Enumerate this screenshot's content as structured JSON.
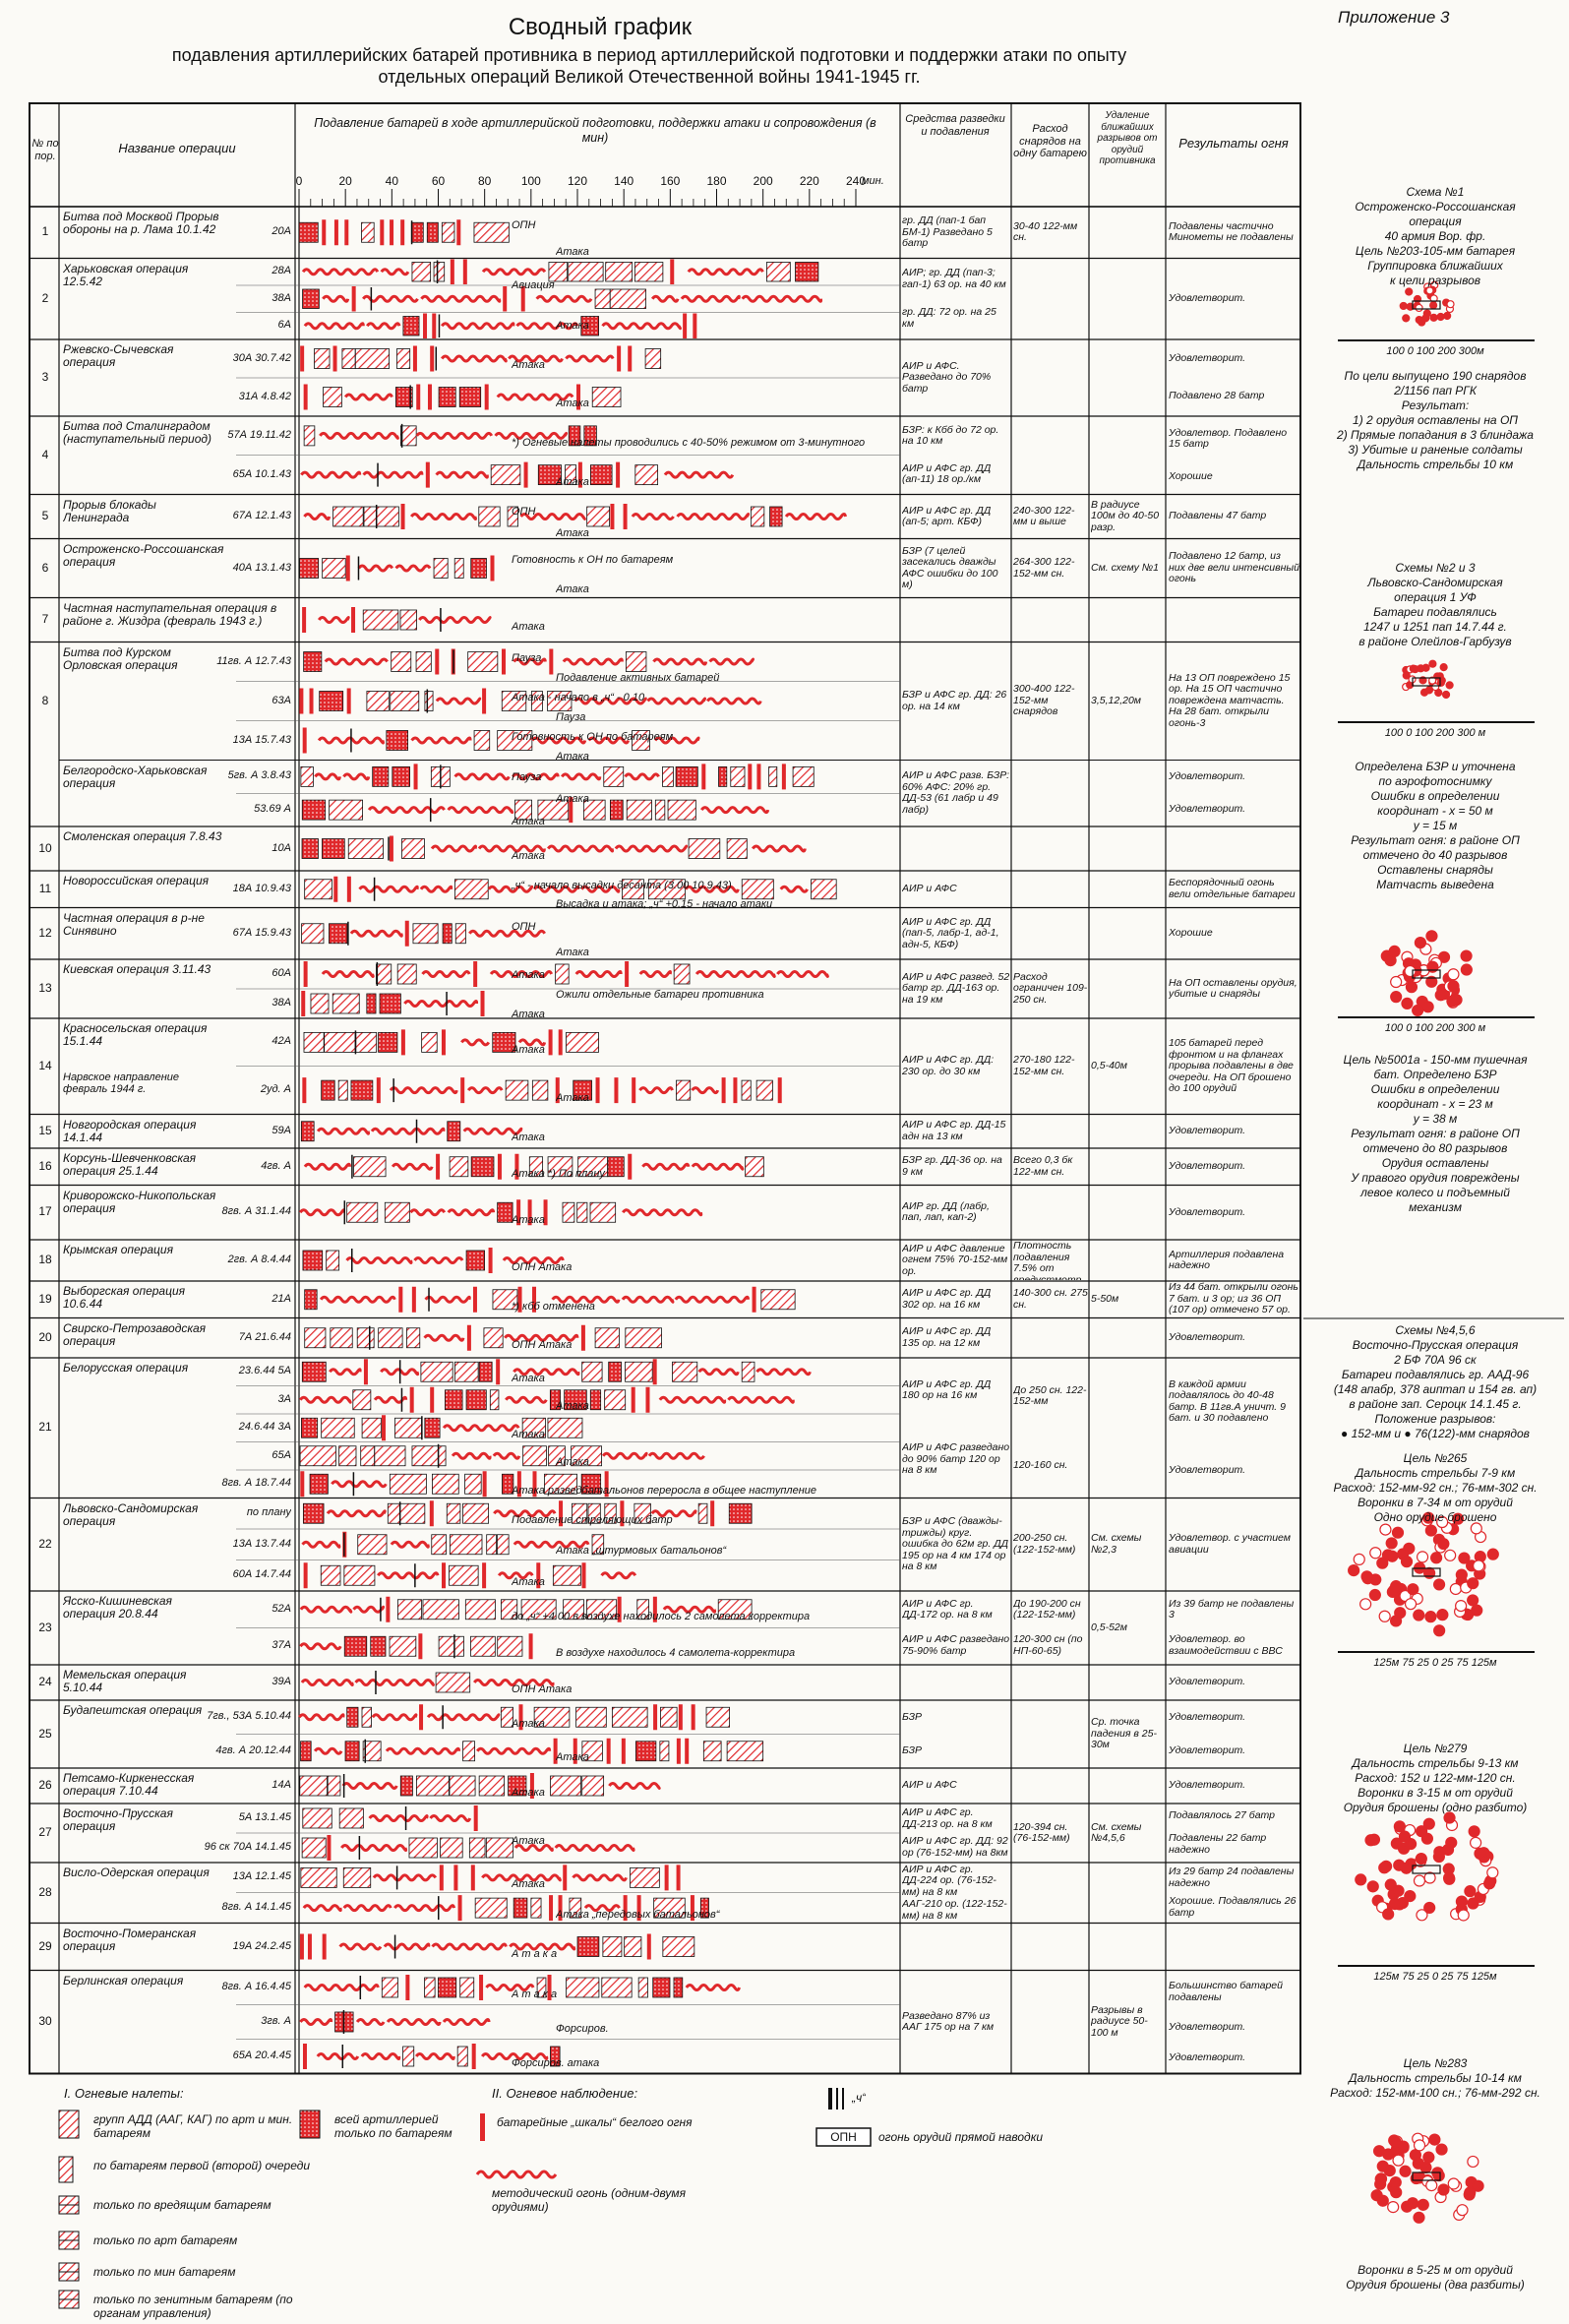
{
  "appendix": "Приложение 3",
  "title": "Сводный график",
  "subtitle": [
    "подавления артиллерийских батарей противника в период артиллерийской подготовки и поддержки атаки по опыту",
    "отдельных операций Великой Отечественной войны 1941-1945 гг."
  ],
  "header": {
    "num": "№ по пор.",
    "name": "Название операции",
    "chart": "Подавление батарей в ходе артиллерийской подготовки, поддержки атаки и сопровождения (в мин)",
    "means": "Средства разведки и подавления",
    "exp": "Расход снарядов на одну батарею",
    "dist": "Удаление ближайших разрывов от орудий противника",
    "result": "Результаты огня",
    "ticks": [
      0,
      20,
      40,
      60,
      80,
      100,
      120,
      140,
      160,
      180,
      200,
      220,
      240
    ],
    "unit": "мин."
  },
  "rows": [
    {
      "num": 1,
      "name": "Битва под Москвой Прорыв обороны на р. Лама 10.1.42",
      "units": [
        "20А"
      ],
      "means": [
        "гр. ДД (пап-1 бап БМ-1) Разведано 5 батр"
      ],
      "exp": [
        "30-40 122-мм сн."
      ],
      "res": [
        "Подавлены частично Минометы не подавлены"
      ],
      "notes": [
        "ОПН",
        "Атака"
      ]
    },
    {
      "num": 2,
      "name": "Харьковская операция 12.5.42",
      "units": [
        "28А",
        "38А",
        "6А"
      ],
      "means": [
        "АИР; гр. ДД (пап-3; гап-1) 63 ор. на 40 км",
        "гр. ДД: 72 ор. на 25 км"
      ],
      "res": [
        "Удовлетворит."
      ],
      "notes": [
        "Авиация",
        "Атака"
      ]
    },
    {
      "num": 3,
      "name": "Ржевско-Сычевская операция",
      "units": [
        "30А 30.7.42",
        "31А 4.8.42"
      ],
      "means": [
        "АИР и АФС. Разведано до 70% батр"
      ],
      "res": [
        "Удовлетворит.",
        "Подавлено 28 батр"
      ],
      "notes": [
        "Атака",
        "Атака"
      ]
    },
    {
      "num": 4,
      "name": "Битва под Сталинградом (наступательный период)",
      "units": [
        "57А 19.11.42",
        "65А 10.1.43"
      ],
      "means": [
        "БЗР: к Кбб до 72 ор. на 10 км",
        "АИР и АФС гр. ДД (ап-11) 18 ор./км"
      ],
      "res": [
        "Удовлетвор. Подавлено 15 батр",
        "Хорошие"
      ],
      "notes": [
        "*) Огневые налеты проводились с 40-50% режимом от 3-минутного",
        "Атака"
      ]
    },
    {
      "num": 5,
      "name": "Прорыв блокады Ленинграда",
      "units": [
        "67А 12.1.43"
      ],
      "means": [
        "АИР и АФС гр. ДД (ап-5; арт. КБФ)"
      ],
      "exp": [
        "240-300 122-мм и выше"
      ],
      "dist": [
        "В радиусе 100м до 40-50 разр."
      ],
      "res": [
        "Подавлены 47 батр"
      ],
      "notes": [
        "ОПН",
        "Атака"
      ]
    },
    {
      "num": 6,
      "name": "Остроженско-Россошанская операция",
      "units": [
        "40А 13.1.43"
      ],
      "means": [
        "БЗР (7 целей засекались дважды АФС ошибки до 100 м)"
      ],
      "exp": [
        "264-300 122-152-мм сн."
      ],
      "dist": [
        "См. схему №1"
      ],
      "res": [
        "Подавлено 12 батр, из них две вели интенсивный огонь"
      ],
      "notes": [
        "Готовность к ОН по батареям",
        "Атака"
      ]
    },
    {
      "num": 7,
      "name": "Частная наступательная операция в районе г. Жиздра (февраль 1943 г.)",
      "units": [],
      "notes": [
        "Атака"
      ]
    },
    {
      "num": 8,
      "name": "Битва под Курском Орловская операция",
      "units": [
        "11гв. А 12.7.43",
        "63А",
        "13А 15.7.43"
      ],
      "means": [
        "БЗР и АФС гр. ДД: 26 ор. на 14 км"
      ],
      "exp": [
        "300-400 122-152-мм снарядов"
      ],
      "dist": [
        "3,5,12,20м"
      ],
      "res": [
        "На 13 ОП повреждено 15 ор. На 15 ОП частично повреждена матчасть. На 28 бат. открыли огонь-3"
      ],
      "notes": [
        "Пауза",
        "Подавление активных батарей",
        "Атака - начало в „ч“ - 0.10",
        "Пауза",
        "Готовность к ОН по батареям",
        "Атака"
      ]
    },
    {
      "name": "Белгородско-Харьковская операция",
      "units": [
        "5гв. А 3.8.43",
        "53.69 А"
      ],
      "means": [
        "АИР и АФС разв. БЗР: 60% АФС: 20% гр. ДД-53 (61 лабр и 49 лабр)"
      ],
      "res": [
        "Удовлетворит.",
        "Удовлетворит."
      ],
      "notes": [
        "Пауза",
        "Атака",
        "Атака"
      ]
    },
    {
      "num": 10,
      "name": "Смоленская операция 7.8.43",
      "units": [
        "10А"
      ],
      "notes": [
        "Атака"
      ]
    },
    {
      "num": 11,
      "name": "Новороссийская операция",
      "units": [
        "18А 10.9.43"
      ],
      "means": [
        "АИР и АФС"
      ],
      "res": [
        "Беспорядочный огонь вели отдельные батареи"
      ],
      "notes": [
        "„ч“ - начало высадки десанта (3.00 10.9.43)",
        "Высадка и атака; „ч“ +0.15 - начало атаки"
      ]
    },
    {
      "num": 12,
      "name": "Частная операция в р-не Синявино",
      "units": [
        "67А 15.9.43"
      ],
      "means": [
        "АИР и АФС гр. ДД (пап-5, лабр-1, ад-1, адн-5, КБФ)"
      ],
      "res": [
        "Хорошие"
      ],
      "notes": [
        "ОПН",
        "Атака"
      ]
    },
    {
      "num": 13,
      "name": "Киевская операция 3.11.43",
      "units": [
        "60А",
        "38А"
      ],
      "means": [
        "АИР и АФС развед. 52 батр гр. ДД-163 ор. на 19 км"
      ],
      "exp": [
        "Расход ограничен 109-250 сн."
      ],
      "res": [
        "На ОП оставлены орудия, убитые и снаряды"
      ],
      "notes": [
        "Атака",
        "Ожили отдельные батареи противника",
        "Атака"
      ]
    },
    {
      "num": 14,
      "name": "Красносельская операция 15.1.44",
      "subname": "Нарвское направление февраль 1944 г.",
      "units": [
        "42А",
        "2уд. А"
      ],
      "means": [
        "АИР и АФС гр. ДД: 230 ор. до 30 км"
      ],
      "exp": [
        "270-180 122-152-мм сн."
      ],
      "dist": [
        "0,5-40м"
      ],
      "res": [
        "105 батарей перед фронтом и на флангах прорыва подавлены в две очереди. На ОП брошено до 100 орудий"
      ],
      "notes": [
        "Атака",
        "Атака"
      ]
    },
    {
      "num": 15,
      "name": "Новгородская операция 14.1.44",
      "units": [
        "59А"
      ],
      "means": [
        "АИР и АФС гр. ДД-15 адн на 13 км"
      ],
      "res": [
        "Удовлетворит."
      ],
      "notes": [
        "Атака"
      ]
    },
    {
      "num": 16,
      "name": "Корсунь-Шевченковская операция 25.1.44",
      "units": [
        "4гв. А"
      ],
      "means": [
        "БЗР гр. ДД-36 ор. на 9 км"
      ],
      "exp": [
        "Всего 0,3 бк 122-мм сн."
      ],
      "res": [
        "Удовлетворит."
      ],
      "notes": [
        "Атака *) По плану"
      ]
    },
    {
      "num": 17,
      "name": "Криворожско-Никопольская операция",
      "units": [
        "8гв. А 31.1.44"
      ],
      "means": [
        "АИР гр. ДД (лабр, пап, лап, кап-2)"
      ],
      "res": [
        "Удовлетворит."
      ],
      "notes": [
        "Атака"
      ]
    },
    {
      "num": 18,
      "name": "Крымская операция",
      "units": [
        "2гв. А 8.4.44"
      ],
      "means": [
        "АИР и АФС давление огнем 75% 70-152-мм ор."
      ],
      "exp": [
        "Плотность подавления 7.5% от вредустмотр."
      ],
      "res": [
        "Артиллерия подавлена надежно"
      ],
      "notes": [
        "ОПН Атака"
      ]
    },
    {
      "num": 19,
      "name": "Выборгская операция 10.6.44",
      "units": [
        "21А"
      ],
      "means": [
        "АИР и АФС гр. ДД 302 ор. на 16 км"
      ],
      "exp": [
        "140-300 сн. 275 сн."
      ],
      "dist": [
        "5-50м"
      ],
      "res": [
        "Из 44 бат. открыли огонь 7 бат. и 3 ор; из 36 ОП (107 ор) отмечено 57 ор. на 6 ОП"
      ],
      "notes": [
        "*) кбб отменена"
      ]
    },
    {
      "num": 20,
      "name": "Свирско-Петрозаводская операция",
      "units": [
        "7А 21.6.44"
      ],
      "means": [
        "АИР и АФС гр. ДД 135 ор. на 12 км"
      ],
      "res": [
        "Удовлетворит."
      ],
      "notes": [
        "ОПН Атака"
      ]
    },
    {
      "num": 21,
      "name": "Белорусская операция",
      "units": [
        "23.6.44 5А",
        "3А",
        "24.6.44 3А",
        "65А",
        "8гв. А 18.7.44"
      ],
      "means": [
        "АИР и АФС гр. ДД 180 ор на 16 км",
        "АИР и АФС разведано до 90% батр 120 ор на 8 км"
      ],
      "exp": [
        "До 250 сн. 122-152-мм",
        "120-160 сн."
      ],
      "res": [
        "В каждой армии подавлялось до 40-48 батр. В 11гв.А уничт. 9 бат. и 30 подавлено",
        "Удовлетворит."
      ],
      "notes": [
        "Атака",
        "Атака",
        "Атака",
        "Атака",
        "Атака разведбатальонов переросла в общее наступление"
      ]
    },
    {
      "num": 22,
      "name": "Львовско-Сандомирская операция",
      "units": [
        "по плану",
        "13А 13.7.44",
        "60А 14.7.44"
      ],
      "means": [
        "БЗР и АФС (дважды-трижды) круг. ошибка до 62м гр. ДД 195 ор на 4 км 174 ор на 8 км"
      ],
      "exp": [
        "200-250 сн. (122-152-мм)"
      ],
      "dist": [
        "См. схемы №2,3"
      ],
      "res": [
        "Удовлетвор. с участием авиации"
      ],
      "notes": [
        "Подавление стреляющих батр",
        "Атака „штурмовых батальонов“",
        "Атака"
      ]
    },
    {
      "num": 23,
      "name": "Ясско-Кишиневская операция 20.8.44",
      "units": [
        "52А",
        "37А"
      ],
      "means": [
        "АИР и АФС гр. ДД-172 ор. на 8 км",
        "АИР и АФС разведано 75-90% батр"
      ],
      "exp": [
        "До 190-200 сн (122-152-мм)",
        "120-300 сн (по НП-60-65)"
      ],
      "dist": [
        "0,5-52м"
      ],
      "res": [
        "Из 39 батр не подавлены 3",
        "Удовлетвор. во взаимодействии с ВВС"
      ],
      "notes": [
        "до „ч“ +4.00 в воздухе находилось 2 самолета корректира",
        "В воздухе находилось 4 самолета-корректира"
      ]
    },
    {
      "num": 24,
      "name": "Мемельская операция 5.10.44",
      "units": [
        "39А"
      ],
      "res": [
        "Удовлетворит."
      ],
      "notes": [
        "ОПН Атака"
      ]
    },
    {
      "num": 25,
      "name": "Будапештская операция",
      "units": [
        "7гв., 53А 5.10.44",
        "4гв. А 20.12.44"
      ],
      "means": [
        "БЗР",
        "БЗР"
      ],
      "dist": [
        "Ср. точка падения в 25-30м"
      ],
      "res": [
        "Удовлетворит.",
        "Удовлетворит."
      ],
      "notes": [
        "Атака",
        "Атака"
      ]
    },
    {
      "num": 26,
      "name": "Петсамо-Киркенесская операция 7.10.44",
      "units": [
        "14А"
      ],
      "means": [
        "АИР и АФС"
      ],
      "res": [
        "Удовлетворит."
      ],
      "notes": [
        "Атака"
      ]
    },
    {
      "num": 27,
      "name": "Восточно-Прусская операция",
      "units": [
        "5А 13.1.45",
        "96 ск 70А 14.1.45"
      ],
      "means": [
        "АИР и АФС гр. ДД-213 ор. на 8 км",
        "АИР и АФС гр. ДД: 92 ор (76-152-мм) на 8км"
      ],
      "exp": [
        "120-394 сн. (76-152-мм)"
      ],
      "dist": [
        "См. схемы №4,5,6"
      ],
      "res": [
        "Подавлялось 27 батр",
        "Подавлены 22 батр надежно"
      ],
      "notes": [
        "Атака"
      ]
    },
    {
      "num": 28,
      "name": "Висло-Одерская операция",
      "units": [
        "13А 12.1.45",
        "8гв. А 14.1.45"
      ],
      "means": [
        "АИР и АФС гр. ДД-224 ор. (76-152-мм) на 8 км",
        "ААГ-210 ор. (122-152-мм) на 8 км"
      ],
      "res": [
        "Из 29 батр 24 подавлены надежно",
        "Хорошие. Подавлялись 26 батр"
      ],
      "notes": [
        "Атака",
        "Атака „передовых батальонов“"
      ]
    },
    {
      "num": 29,
      "name": "Восточно-Померанская операция",
      "units": [
        "19А 24.2.45"
      ],
      "notes": [
        "А т а к а"
      ]
    },
    {
      "num": 30,
      "name": "Берлинская операция",
      "units": [
        "8гв. А 16.4.45",
        "3гв. А",
        "65А 20.4.45"
      ],
      "means": [
        "Разведано 87% из ААГ 175 ор на 7 км"
      ],
      "dist": [
        "Разрывы в радиусе 50-100 м"
      ],
      "res": [
        "Большинство батарей подавлены",
        "Удовлетворит.",
        "Удовлетворит."
      ],
      "notes": [
        "А т а к а",
        "Форсиров.",
        "Форсиров. атака"
      ]
    }
  ],
  "legend": {
    "fire_title": "I. Огневые налеты:",
    "fire": [
      "групп АДД (ААГ, КАГ) по арт и мин. батареям",
      "всей артиллерией только по батареям",
      "по батареям первой (второй) очереди",
      "только по вредящим батареям",
      "только по арт батареям",
      "только по мин батареям",
      "только по зенитным батареям (по органам управления)"
    ],
    "obs_title": "II. Огневое наблюдение:",
    "obs": [
      "батарейные „шкалы“ беглого огня",
      "методический огонь (одним-двумя орудиями)"
    ],
    "h": "„ч“",
    "opn": "ОПН",
    "opn_text": "огонь орудий прямой наводки"
  },
  "side": [
    {
      "lines": [
        "Схема №1",
        "Остроженско-Россошанская",
        "операция",
        "40 армия Вор. фр.",
        "Цель №203-105-мм батарея",
        "Группировка ближайших",
        "к цели разрывов"
      ],
      "scale": "100 0 100 200 300м"
    },
    {
      "lines": [
        "По цели выпущено 190 снарядов",
        "2/1156 пап РГК",
        "Результат:",
        "1) 2 орудия оставлены на ОП",
        "2) Прямые попадания в 3 блиндажа",
        "3) Убитые и раненые солдаты",
        "Дальность стрельбы 10 км"
      ]
    },
    {
      "lines": [
        "Схемы №2 и 3",
        "Львовско-Сандомирская",
        "операция 1 УФ",
        "Батареи подавлялись",
        "1247 и 1251 пап 14.7.44 г.",
        "в районе Олейлов-Гарбузув"
      ],
      "scale": "100 0 100 200 300 м"
    },
    {
      "lines": [
        "Определена БЗР и уточнена",
        "по аэрофотоснимку",
        "Ошибки в определении",
        "координат - x = 50 м",
        "y = 15 м",
        "Результат огня: в районе ОП",
        "отмечено до 40 разрывов",
        "Оставлены снаряды",
        "Матчасть выведена"
      ],
      "scale": "100 0 100 200 300 м"
    },
    {
      "lines": [
        "Цель №5001а - 150-мм пушечная",
        "бат. Определено БЗР",
        "Ошибки в определении",
        "координат - x = 23 м",
        "y = 38 м",
        "Результат огня: в районе ОП",
        "отмечено до 80 разрывов",
        "Орудия оставлены",
        "У правого орудия повреждены",
        "левое колесо и подъемный",
        "механизм"
      ]
    },
    {
      "lines": [
        "Схемы №4,5,6",
        "Восточно-Прусская операция",
        "2 БФ 70А 96 ск",
        "Батареи подавлялись гр. ААД-96",
        "(148 апабр, 378 аиптап и 154 гв. ап)",
        "в районе зап. Сероцк 14.1.45 г.",
        "Положение разрывов:",
        "● 152-мм и ● 76(122)-мм снарядов"
      ]
    },
    {
      "lines": [
        "Цель №265",
        "Дальность стрельбы 7-9 км",
        "Расход: 152-мм-92 сн.; 76-мм-302 сн.",
        "Воронки в 7-34 м от орудий",
        "Одно орудие брошено"
      ],
      "scale": "125м 75 25 0 25 75 125м"
    },
    {
      "lines": [
        "Цель №279",
        "Дальность стрельбы 9-13 км",
        "Расход: 152 и 122-мм-120 сн.",
        "Воронки в 3-15 м от орудий",
        "Орудия брошены (одно разбито)"
      ],
      "scale": "125м 75 25 0 25 75 125м"
    },
    {
      "lines": [
        "Цель №283",
        "Дальность стрельбы 10-14 км",
        "Расход: 152-мм-100 сн.; 76-мм-292 сн."
      ]
    },
    {
      "lines": [
        "Воронки в 5-25 м от орудий",
        "Орудия брошены (два разбиты)"
      ]
    }
  ]
}
